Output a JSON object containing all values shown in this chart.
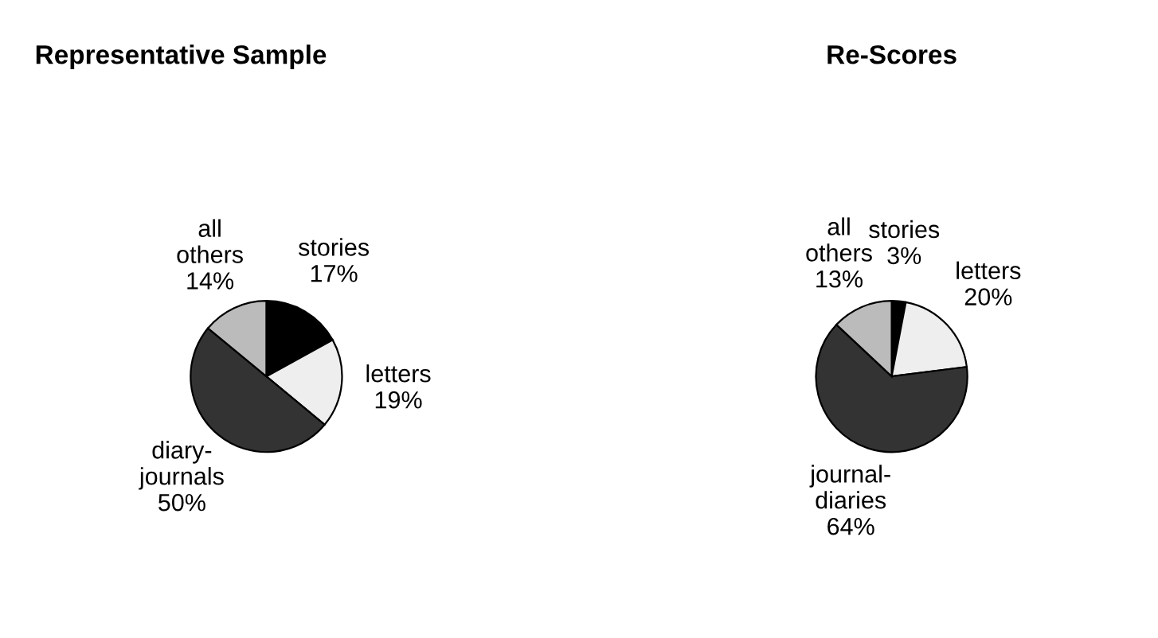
{
  "chart_data": [
    {
      "type": "pie",
      "title": "Representative Sample",
      "categories": [
        "stories",
        "letters",
        "diary-\njournals",
        "all\nothers"
      ],
      "values": [
        17,
        19,
        50,
        14
      ],
      "value_labels": [
        "17%",
        "19%",
        "50%",
        "14%"
      ],
      "colors": [
        "#000000",
        "#eeeeee",
        "#333333",
        "#bbbbbb"
      ]
    },
    {
      "type": "pie",
      "title": "Re-Scores",
      "categories": [
        "stories",
        "letters",
        "journal-\ndiaries",
        "all\nothers"
      ],
      "values": [
        3,
        20,
        64,
        13
      ],
      "value_labels": [
        "3%",
        "20%",
        "64%",
        "13%"
      ],
      "colors": [
        "#000000",
        "#eeeeee",
        "#333333",
        "#bbbbbb"
      ]
    }
  ]
}
